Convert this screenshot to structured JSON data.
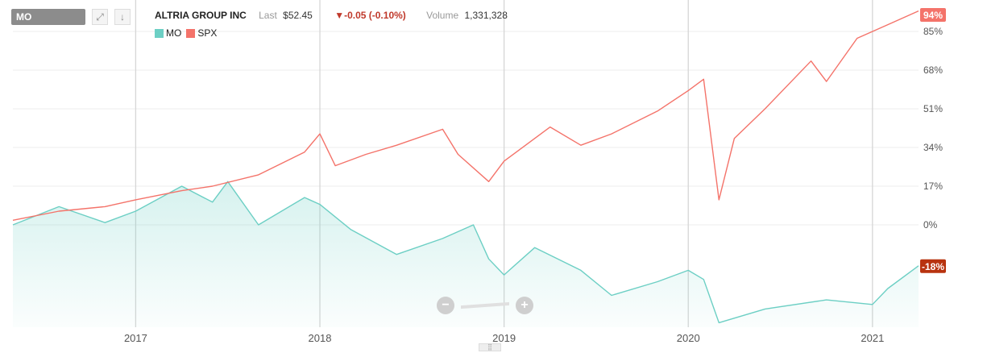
{
  "symbol": "MO",
  "quote": {
    "company": "ALTRIA GROUP INC",
    "last_label": "Last",
    "last_value": "$52.45",
    "change": "▼-0.05 (-0.10%)",
    "volume_label": "Volume",
    "volume_value": "1,331,328"
  },
  "icons": {
    "expand": "expand-icon",
    "download": "download-icon"
  },
  "colors": {
    "mo": "#6ccfc4",
    "spx": "#f4736a",
    "negative_badge": "#b8330f",
    "positive_badge": "#f4736a"
  },
  "zoom": {
    "minus": "−",
    "plus": "+"
  },
  "chart_data": {
    "type": "line",
    "x_range": [
      "2016-05",
      "2021-04"
    ],
    "xticks": [
      "2017",
      "2018",
      "2019",
      "2020",
      "2021"
    ],
    "yticks": [
      "85%",
      "68%",
      "51%",
      "34%",
      "17%",
      "0%"
    ],
    "y_range": [
      -45,
      96
    ],
    "grid": true,
    "legend_position": "top-left",
    "series": [
      {
        "name": "MO",
        "end_label": "-18%",
        "x": [
          "2016-05",
          "2016-08",
          "2016-11",
          "2017-01",
          "2017-04",
          "2017-06",
          "2017-07",
          "2017-09",
          "2017-12",
          "2018-01",
          "2018-03",
          "2018-06",
          "2018-09",
          "2018-11",
          "2018-12",
          "2019-01",
          "2019-03",
          "2019-06",
          "2019-08",
          "2019-11",
          "2020-01",
          "2020-02",
          "2020-03",
          "2020-06",
          "2020-10",
          "2021-01",
          "2021-02",
          "2021-04"
        ],
        "values": [
          0,
          8,
          1,
          6,
          17,
          10,
          19,
          0,
          12,
          9,
          -2,
          -13,
          -6,
          0,
          -15,
          -22,
          -10,
          -20,
          -31,
          -25,
          -20,
          -24,
          -43,
          -37,
          -33,
          -35,
          -28,
          -18
        ]
      },
      {
        "name": "SPX",
        "end_label": "94%",
        "x": [
          "2016-05",
          "2016-08",
          "2016-11",
          "2017-01",
          "2017-04",
          "2017-06",
          "2017-09",
          "2017-12",
          "2018-01",
          "2018-02",
          "2018-04",
          "2018-06",
          "2018-09",
          "2018-10",
          "2018-12",
          "2019-01",
          "2019-04",
          "2019-06",
          "2019-08",
          "2019-11",
          "2020-01",
          "2020-02",
          "2020-03",
          "2020-04",
          "2020-06",
          "2020-09",
          "2020-10",
          "2020-12",
          "2021-02",
          "2021-04"
        ],
        "values": [
          2,
          6,
          8,
          11,
          15,
          17,
          22,
          32,
          40,
          26,
          31,
          35,
          42,
          31,
          19,
          28,
          43,
          35,
          40,
          50,
          59,
          64,
          11,
          38,
          51,
          72,
          63,
          82,
          88,
          94
        ]
      }
    ]
  }
}
